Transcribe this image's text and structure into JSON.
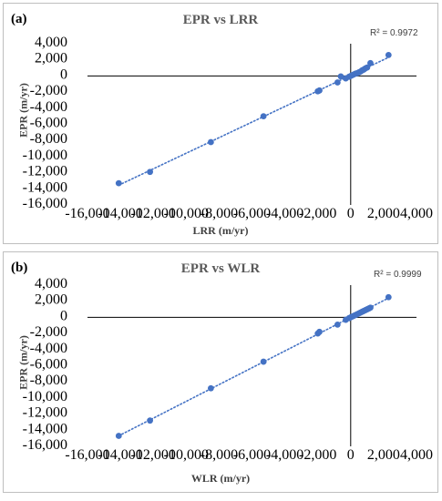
{
  "chart_data": [
    {
      "type": "scatter",
      "panel_label": "(a)",
      "title": "EPR vs LRR",
      "xlabel": "LRR (m/yr)",
      "ylabel": "EPR (m/yr)",
      "annotation": "R² = 0.9972",
      "xlim": [
        -16000,
        4000
      ],
      "ylim": [
        -16000,
        4000
      ],
      "xticks": [
        -16000,
        -14000,
        -12000,
        -10000,
        -8000,
        -6000,
        -4000,
        -2000,
        0,
        2000,
        4000
      ],
      "yticks": [
        -16000,
        -14000,
        -12000,
        -10000,
        -8000,
        -6000,
        -4000,
        -2000,
        0,
        2000,
        4000
      ],
      "x_tick_labels": [
        "-16,000",
        "-14,000",
        "-12,000",
        "-10,000",
        "-8,000",
        "-6,000",
        "-4,000",
        "-2,000",
        "0",
        "2,000",
        "4,000"
      ],
      "y_tick_labels": [
        "-16,000",
        "-14,000",
        "-12,000",
        "-10,000",
        "-8,000",
        "-6,000",
        "-4,000",
        "-2,000",
        "0",
        "2,000",
        "4,000"
      ],
      "trendline": "linear, dotted",
      "grid": false,
      "marker_color": "#4472c4",
      "points": [
        {
          "x": -14100,
          "y": -13300
        },
        {
          "x": -12200,
          "y": -11900
        },
        {
          "x": -8500,
          "y": -8200
        },
        {
          "x": -5300,
          "y": -5000
        },
        {
          "x": -2000,
          "y": -1900
        },
        {
          "x": -1900,
          "y": -1800
        },
        {
          "x": -800,
          "y": -800
        },
        {
          "x": -600,
          "y": -50
        },
        {
          "x": -300,
          "y": -300
        },
        {
          "x": -100,
          "y": -100
        },
        {
          "x": 0,
          "y": 0
        },
        {
          "x": 100,
          "y": 100
        },
        {
          "x": 200,
          "y": 200
        },
        {
          "x": 300,
          "y": 300
        },
        {
          "x": 400,
          "y": 350
        },
        {
          "x": 500,
          "y": 450
        },
        {
          "x": 600,
          "y": 550
        },
        {
          "x": 700,
          "y": 700
        },
        {
          "x": 800,
          "y": 800
        },
        {
          "x": 900,
          "y": 950
        },
        {
          "x": 1000,
          "y": 1050
        },
        {
          "x": 1200,
          "y": 1600
        },
        {
          "x": 2300,
          "y": 2600
        }
      ]
    },
    {
      "type": "scatter",
      "panel_label": "(b)",
      "title": "EPR vs WLR",
      "xlabel": "WLR (m/yr)",
      "ylabel": "EPR (m/yr)",
      "annotation": "R² = 0.9999",
      "xlim": [
        -16000,
        4000
      ],
      "ylim": [
        -16000,
        4000
      ],
      "xticks": [
        -16000,
        -14000,
        -12000,
        -10000,
        -8000,
        -6000,
        -4000,
        -2000,
        0,
        2000,
        4000
      ],
      "yticks": [
        -16000,
        -14000,
        -12000,
        -10000,
        -8000,
        -6000,
        -4000,
        -2000,
        0,
        2000,
        4000
      ],
      "x_tick_labels": [
        "-16,000",
        "-14,000",
        "-12,000",
        "-10,000",
        "-8,000",
        "-6,000",
        "-4,000",
        "-2,000",
        "0",
        "2,000",
        "4,000"
      ],
      "y_tick_labels": [
        "-16,000",
        "-14,000",
        "-12,000",
        "-10,000",
        "-8,000",
        "-6,000",
        "-4,000",
        "-2,000",
        "0",
        "2,000",
        "4,000"
      ],
      "trendline": "linear, dotted",
      "grid": false,
      "marker_color": "#4472c4",
      "points": [
        {
          "x": -14100,
          "y": -14700
        },
        {
          "x": -12200,
          "y": -12800
        },
        {
          "x": -8500,
          "y": -8800
        },
        {
          "x": -5300,
          "y": -5500
        },
        {
          "x": -2000,
          "y": -2000
        },
        {
          "x": -1900,
          "y": -1800
        },
        {
          "x": -800,
          "y": -900
        },
        {
          "x": -300,
          "y": -300
        },
        {
          "x": -100,
          "y": -100
        },
        {
          "x": 0,
          "y": 0
        },
        {
          "x": 100,
          "y": 100
        },
        {
          "x": 200,
          "y": 200
        },
        {
          "x": 300,
          "y": 300
        },
        {
          "x": 400,
          "y": 400
        },
        {
          "x": 500,
          "y": 500
        },
        {
          "x": 600,
          "y": 600
        },
        {
          "x": 700,
          "y": 700
        },
        {
          "x": 800,
          "y": 800
        },
        {
          "x": 900,
          "y": 900
        },
        {
          "x": 1000,
          "y": 1000
        },
        {
          "x": 1100,
          "y": 1100
        },
        {
          "x": 1200,
          "y": 1200
        },
        {
          "x": 2300,
          "y": 2500
        }
      ]
    }
  ]
}
